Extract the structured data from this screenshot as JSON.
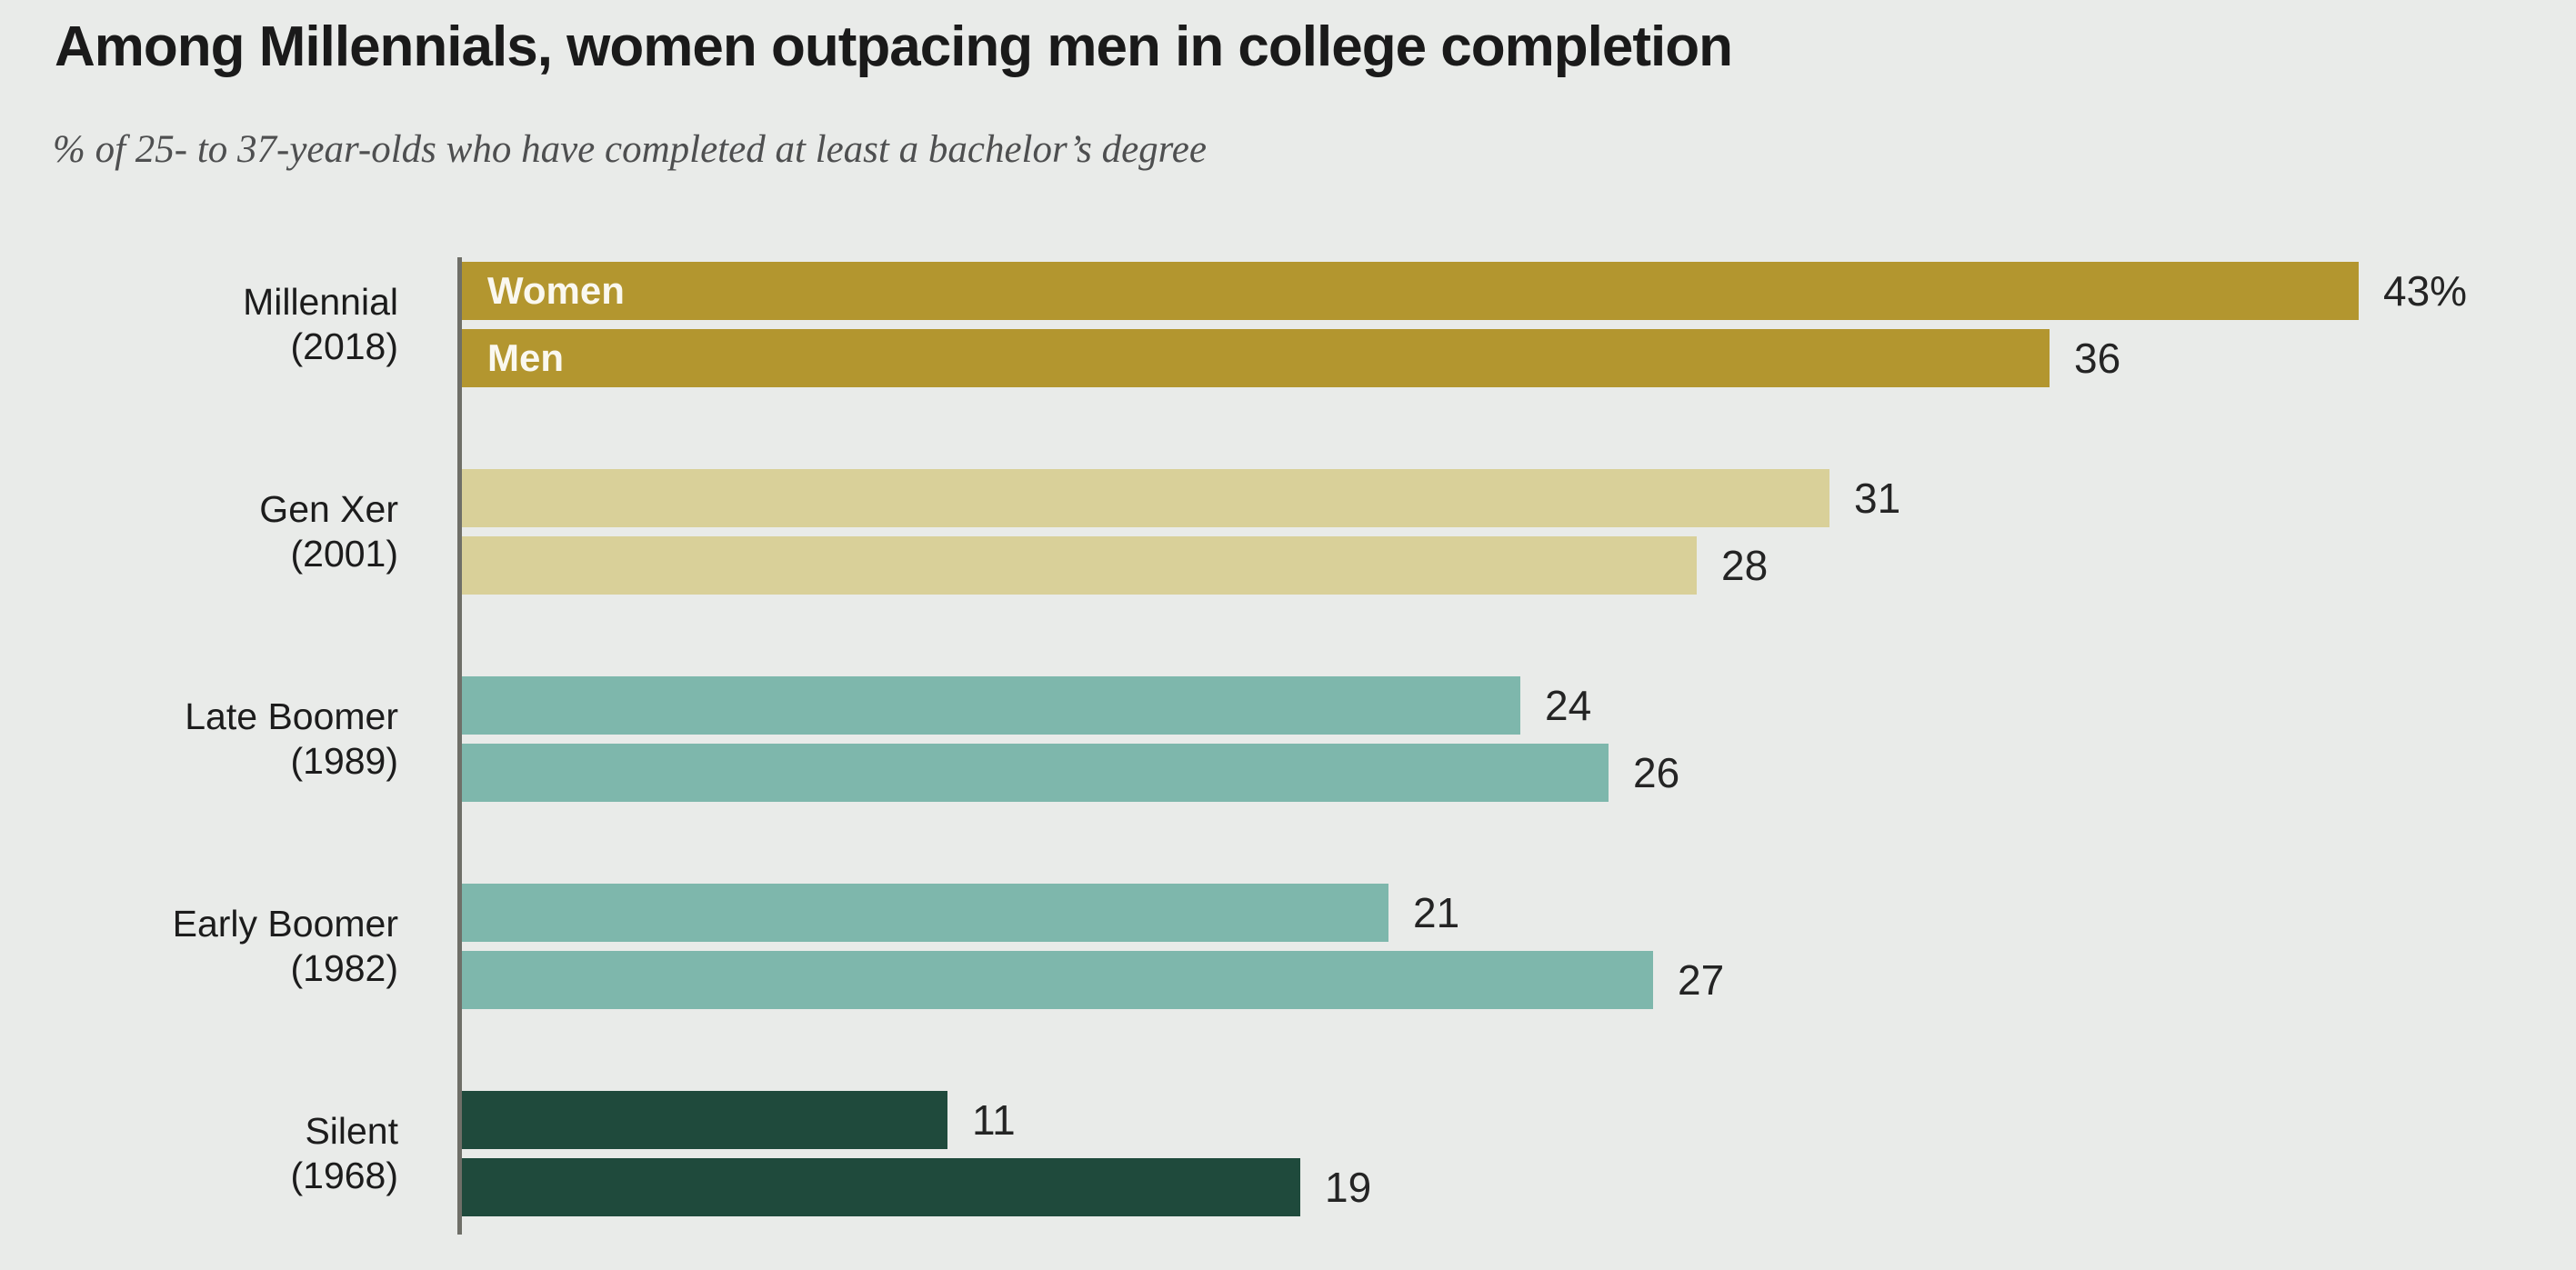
{
  "title": "Among Millennials, women outpacing men in college completion",
  "subtitle": "% of 25- to 37-year-olds who have completed at least a bachelor’s degree",
  "colors": {
    "background": "#e9ebe9",
    "axis_line": "#6f6f68",
    "title_text": "#1a1a1a",
    "subtitle_text": "#4e4f50",
    "value_text": "#242424",
    "series_label_text": "#ffffff",
    "millennial_gold": "#b3962f",
    "genx_khaki": "#d9d099",
    "boomer_teal": "#7eb7ac",
    "silent_green": "#1f4a3c"
  },
  "chart_data": {
    "type": "bar",
    "orientation": "horizontal",
    "title": "Among Millennials, women outpacing men in college completion",
    "subtitle": "% of 25- to 37-year-olds who have completed at least a bachelor’s degree",
    "xlim": [
      0,
      45
    ],
    "grid": false,
    "legend_position": "inline-labels-on-first-group",
    "series_names": [
      "Women",
      "Men"
    ],
    "unit": "%",
    "groups": [
      {
        "label": "Millennial",
        "year": "(2018)",
        "color": "#b3962f",
        "values": [
          43,
          36
        ],
        "value_labels": [
          "43%",
          "36"
        ],
        "show_series_labels": true
      },
      {
        "label": "Gen Xer",
        "year": "(2001)",
        "color": "#d9d099",
        "values": [
          31,
          28
        ],
        "value_labels": [
          "31",
          "28"
        ],
        "show_series_labels": false
      },
      {
        "label": "Late Boomer",
        "year": "(1989)",
        "color": "#7eb7ac",
        "values": [
          24,
          26
        ],
        "value_labels": [
          "24",
          "26"
        ],
        "show_series_labels": false
      },
      {
        "label": "Early Boomer",
        "year": "(1982)",
        "color": "#7eb7ac",
        "values": [
          21,
          27
        ],
        "value_labels": [
          "21",
          "27"
        ],
        "show_series_labels": false
      },
      {
        "label": "Silent",
        "year": "(1968)",
        "color": "#1f4a3c",
        "values": [
          11,
          19
        ],
        "value_labels": [
          "11",
          "19"
        ],
        "show_series_labels": false
      }
    ]
  }
}
